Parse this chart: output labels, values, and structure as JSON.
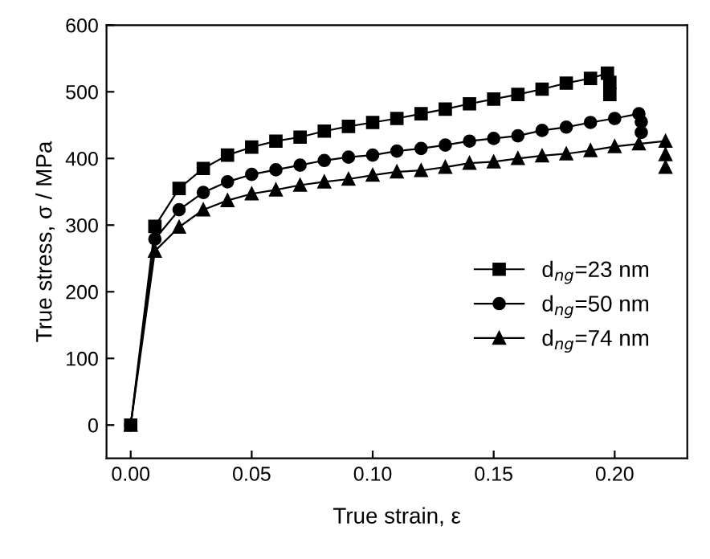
{
  "chart_data": {
    "type": "line",
    "xlabel": "True strain, ε",
    "ylabel": "True stress, σ / MPa",
    "xlim": [
      -0.01,
      0.23
    ],
    "xticks": [
      {
        "value": 0,
        "label": "0.00"
      },
      0.05,
      {
        "value": 0.1,
        "label": "0.10"
      },
      0.15,
      {
        "value": 0.2,
        "label": "0.20"
      }
    ],
    "ylim": [
      -50,
      600
    ],
    "yticks": [
      0,
      100,
      200,
      300,
      400,
      500,
      600
    ],
    "legend": "right",
    "grid": false,
    "line_style": "solid",
    "series": [
      {
        "name": "d$_{ng}$=23 nm",
        "color": "#000000",
        "marker": "square",
        "x": [
          0,
          0.01,
          0.02,
          0.03,
          0.04,
          0.05,
          0.06,
          0.07,
          0.08,
          0.09,
          0.1,
          0.11,
          0.12,
          0.13,
          0.14,
          0.15,
          0.16,
          0.17,
          0.18,
          0.19,
          0.197,
          0.198,
          0.198
        ],
        "values": [
          0,
          298,
          355,
          385,
          405,
          417,
          426,
          432,
          441,
          448,
          454,
          460,
          467,
          474,
          482,
          489,
          496,
          504,
          513,
          520,
          528,
          514,
          496
        ]
      },
      {
        "name": "d$_{ng}$=50 nm",
        "color": "#000000",
        "marker": "circle",
        "x": [
          0,
          0.01,
          0.02,
          0.03,
          0.04,
          0.05,
          0.06,
          0.07,
          0.08,
          0.09,
          0.1,
          0.11,
          0.12,
          0.13,
          0.14,
          0.15,
          0.16,
          0.17,
          0.18,
          0.19,
          0.2,
          0.21,
          0.211,
          0.211
        ],
        "values": [
          0,
          279,
          323,
          349,
          365,
          376,
          383,
          390,
          397,
          402,
          405,
          411,
          415,
          420,
          426,
          430,
          434,
          442,
          447,
          454,
          460,
          467,
          455,
          439
        ]
      },
      {
        "name": "d$_{ng}$=74 nm",
        "color": "#000000",
        "marker": "triangle",
        "x": [
          0,
          0.01,
          0.02,
          0.03,
          0.04,
          0.05,
          0.06,
          0.07,
          0.08,
          0.09,
          0.1,
          0.11,
          0.12,
          0.13,
          0.14,
          0.15,
          0.16,
          0.17,
          0.18,
          0.19,
          0.2,
          0.21,
          0.221,
          0.221,
          0.221
        ],
        "values": [
          0,
          261,
          297,
          323,
          337,
          347,
          353,
          360,
          365,
          369,
          375,
          380,
          382,
          387,
          393,
          395,
          400,
          404,
          407,
          412,
          418,
          422,
          426,
          406,
          387
        ]
      }
    ]
  }
}
